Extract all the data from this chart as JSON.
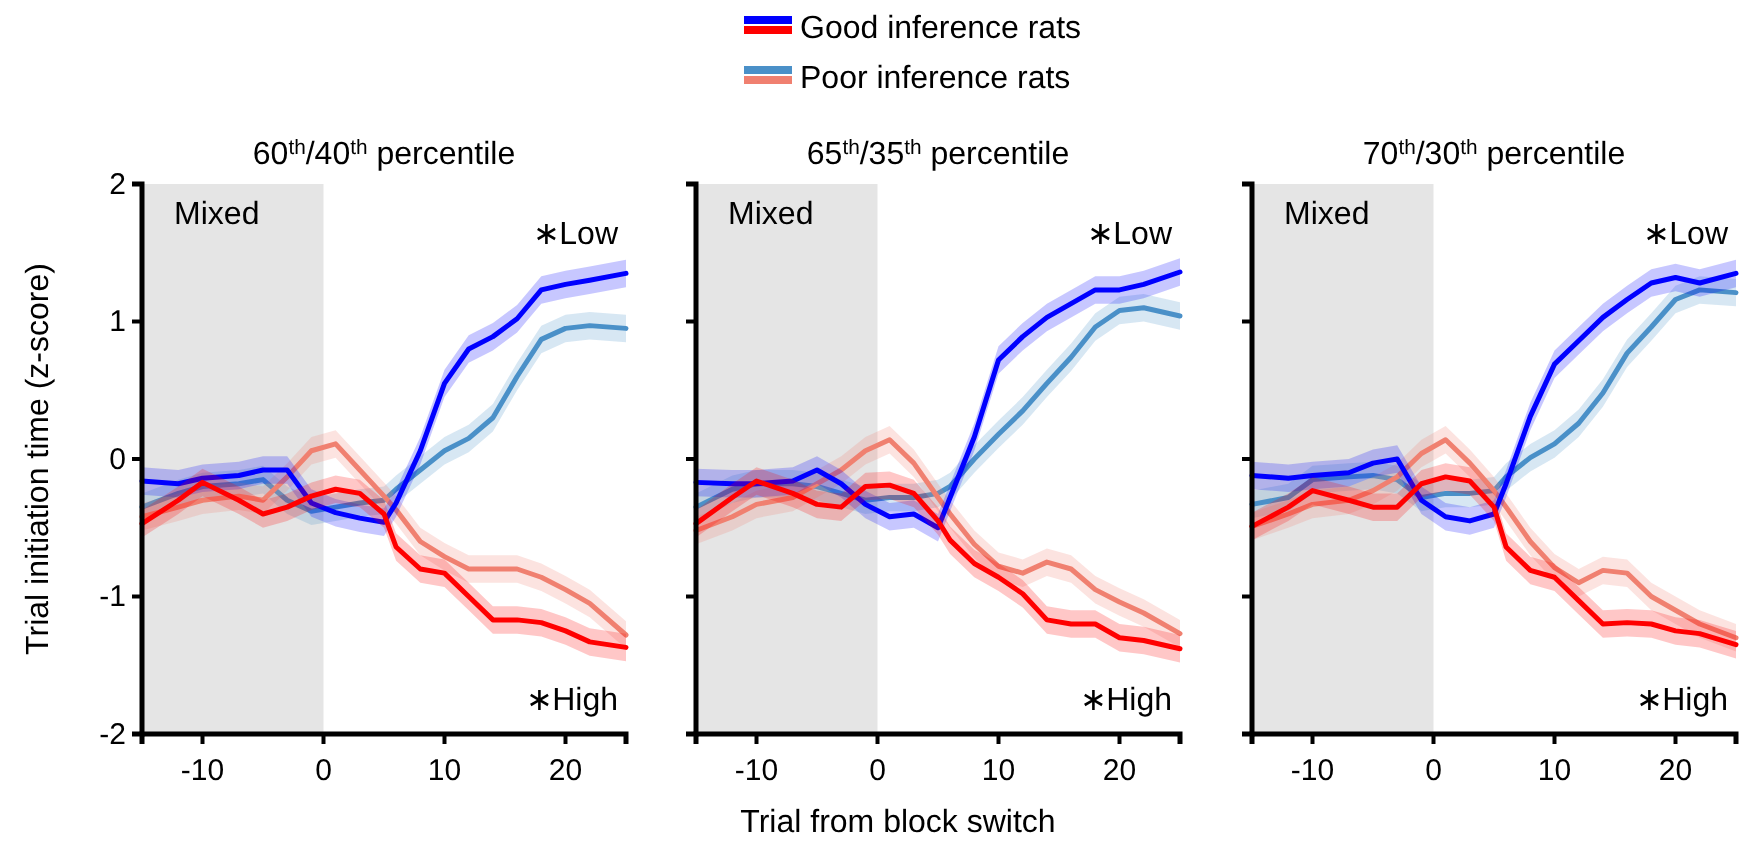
{
  "chart_data": [
    {
      "type": "line",
      "title": "60$^{th}$/40$^{th}$ percentile",
      "ylabel": "Trial initiation time (z-score)",
      "x": [
        -15,
        -12,
        -10,
        -7,
        -5,
        -3,
        -1,
        1,
        3,
        5,
        6,
        8,
        10,
        12,
        14,
        16,
        18,
        20,
        22,
        25
      ],
      "xlim": [
        -15,
        25
      ],
      "xticks": [
        -10,
        0,
        10,
        20
      ],
      "ylim": [
        -2,
        2
      ],
      "yticks": [
        -2,
        -1,
        0,
        1,
        2
      ],
      "bands": [
        {
          "axis": "x",
          "from": -15,
          "to": 0,
          "label": "Mixed",
          "color": "#e5e5e5"
        }
      ],
      "annotations": [
        "∗Low",
        "∗High"
      ],
      "series": [
        {
          "color": "#4a90c8",
          "values": [
            -0.35,
            -0.25,
            -0.2,
            -0.18,
            -0.15,
            -0.3,
            -0.38,
            -0.35,
            -0.32,
            -0.3,
            -0.22,
            -0.08,
            0.06,
            0.15,
            0.3,
            0.6,
            0.87,
            0.95,
            0.97,
            0.95
          ],
          "lower": [
            -0.45,
            -0.35,
            -0.3,
            -0.28,
            -0.25,
            -0.4,
            -0.48,
            -0.45,
            -0.42,
            -0.4,
            -0.32,
            -0.18,
            -0.04,
            0.05,
            0.2,
            0.5,
            0.77,
            0.85,
            0.87,
            0.85
          ],
          "upper": [
            -0.25,
            -0.15,
            -0.1,
            -0.08,
            -0.05,
            -0.2,
            -0.28,
            -0.25,
            -0.22,
            -0.2,
            -0.12,
            0.02,
            0.16,
            0.25,
            0.4,
            0.7,
            0.97,
            1.05,
            1.07,
            1.05
          ]
        },
        {
          "color": "#f08070",
          "values": [
            -0.42,
            -0.35,
            -0.3,
            -0.27,
            -0.3,
            -0.13,
            0.06,
            0.11,
            -0.08,
            -0.27,
            -0.37,
            -0.6,
            -0.71,
            -0.8,
            -0.8,
            -0.8,
            -0.86,
            -0.95,
            -1.05,
            -1.28
          ],
          "lower": [
            -0.52,
            -0.45,
            -0.4,
            -0.37,
            -0.4,
            -0.23,
            -0.04,
            0.01,
            -0.18,
            -0.37,
            -0.47,
            -0.7,
            -0.81,
            -0.9,
            -0.9,
            -0.9,
            -0.96,
            -1.05,
            -1.15,
            -1.38
          ],
          "upper": [
            -0.32,
            -0.25,
            -0.2,
            -0.17,
            -0.2,
            -0.03,
            0.16,
            0.21,
            0.02,
            -0.17,
            -0.27,
            -0.5,
            -0.61,
            -0.7,
            -0.7,
            -0.7,
            -0.76,
            -0.85,
            -0.95,
            -1.18
          ]
        },
        {
          "color": "#0000ff",
          "values": [
            -0.16,
            -0.18,
            -0.14,
            -0.12,
            -0.08,
            -0.08,
            -0.32,
            -0.39,
            -0.43,
            -0.46,
            -0.32,
            0.06,
            0.55,
            0.8,
            0.89,
            1.02,
            1.23,
            1.27,
            1.3,
            1.35
          ],
          "lower": [
            -0.26,
            -0.28,
            -0.24,
            -0.22,
            -0.18,
            -0.18,
            -0.42,
            -0.49,
            -0.53,
            -0.56,
            -0.42,
            -0.04,
            0.45,
            0.7,
            0.79,
            0.92,
            1.13,
            1.17,
            1.2,
            1.25
          ],
          "upper": [
            -0.06,
            -0.08,
            -0.04,
            -0.02,
            0.02,
            0.02,
            -0.22,
            -0.29,
            -0.33,
            -0.36,
            -0.22,
            0.16,
            0.65,
            0.9,
            0.99,
            1.12,
            1.33,
            1.37,
            1.4,
            1.45
          ]
        },
        {
          "color": "#ff0000",
          "values": [
            -0.47,
            -0.3,
            -0.17,
            -0.3,
            -0.4,
            -0.35,
            -0.27,
            -0.22,
            -0.25,
            -0.4,
            -0.64,
            -0.8,
            -0.83,
            -1.0,
            -1.17,
            -1.17,
            -1.19,
            -1.25,
            -1.33,
            -1.37
          ],
          "lower": [
            -0.57,
            -0.4,
            -0.27,
            -0.4,
            -0.5,
            -0.45,
            -0.37,
            -0.32,
            -0.35,
            -0.5,
            -0.74,
            -0.9,
            -0.93,
            -1.1,
            -1.27,
            -1.27,
            -1.29,
            -1.35,
            -1.43,
            -1.47
          ],
          "upper": [
            -0.37,
            -0.2,
            -0.07,
            -0.2,
            -0.3,
            -0.25,
            -0.17,
            -0.12,
            -0.15,
            -0.3,
            -0.54,
            -0.7,
            -0.73,
            -0.9,
            -1.07,
            -1.07,
            -1.09,
            -1.15,
            -1.23,
            -1.27
          ]
        }
      ]
    },
    {
      "type": "line",
      "title": "65$^{th}$/35$^{th}$ percentile",
      "xlabel": "Trial from block switch",
      "legend": "top",
      "tick_labels": "x",
      "x": [
        -15,
        -12,
        -10,
        -7,
        -5,
        -3,
        -1,
        1,
        3,
        5,
        6,
        8,
        10,
        12,
        14,
        16,
        18,
        20,
        22,
        25
      ],
      "xlim": [
        -15,
        25
      ],
      "xticks": [
        -10,
        0,
        10,
        20
      ],
      "ylim": [
        -2,
        2
      ],
      "yticks": [
        -2,
        -1,
        0,
        1,
        2
      ],
      "bands": [
        {
          "axis": "x",
          "from": -15,
          "to": 0,
          "label": "Mixed",
          "color": "#e5e5e5"
        }
      ],
      "annotations": [
        "∗Low",
        "∗High"
      ],
      "series": [
        {
          "name": "Poor inference rats",
          "color": "#4a90c8",
          "values": [
            -0.35,
            -0.22,
            -0.18,
            -0.18,
            -0.2,
            -0.25,
            -0.3,
            -0.28,
            -0.28,
            -0.25,
            -0.2,
            0.0,
            0.18,
            0.35,
            0.55,
            0.74,
            0.96,
            1.08,
            1.1,
            1.04
          ],
          "lower": [
            -0.45,
            -0.32,
            -0.28,
            -0.28,
            -0.3,
            -0.35,
            -0.4,
            -0.38,
            -0.38,
            -0.35,
            -0.3,
            -0.1,
            0.08,
            0.25,
            0.45,
            0.64,
            0.86,
            0.98,
            1.0,
            0.94
          ],
          "upper": [
            -0.25,
            -0.12,
            -0.08,
            -0.08,
            -0.1,
            -0.15,
            -0.2,
            -0.18,
            -0.18,
            -0.15,
            -0.1,
            0.1,
            0.28,
            0.45,
            0.65,
            0.84,
            1.06,
            1.18,
            1.2,
            1.14
          ]
        },
        {
          "color": "#f08070",
          "values": [
            -0.52,
            -0.42,
            -0.33,
            -0.28,
            -0.18,
            -0.08,
            0.06,
            0.14,
            -0.03,
            -0.28,
            -0.4,
            -0.62,
            -0.78,
            -0.83,
            -0.75,
            -0.8,
            -0.95,
            -1.04,
            -1.12,
            -1.27
          ],
          "lower": [
            -0.62,
            -0.52,
            -0.43,
            -0.38,
            -0.28,
            -0.18,
            -0.04,
            0.04,
            -0.13,
            -0.38,
            -0.5,
            -0.72,
            -0.88,
            -0.93,
            -0.85,
            -0.9,
            -1.05,
            -1.14,
            -1.22,
            -1.37
          ],
          "upper": [
            -0.42,
            -0.32,
            -0.23,
            -0.18,
            -0.08,
            0.02,
            0.16,
            0.24,
            0.07,
            -0.18,
            -0.3,
            -0.52,
            -0.68,
            -0.73,
            -0.65,
            -0.7,
            -0.85,
            -0.94,
            -1.02,
            -1.17
          ]
        },
        {
          "name": "Good inference rats",
          "color": "#0000ff",
          "values": [
            -0.17,
            -0.18,
            -0.18,
            -0.16,
            -0.08,
            -0.18,
            -0.33,
            -0.42,
            -0.4,
            -0.5,
            -0.28,
            0.16,
            0.72,
            0.89,
            1.03,
            1.13,
            1.23,
            1.23,
            1.27,
            1.36
          ],
          "lower": [
            -0.27,
            -0.28,
            -0.28,
            -0.26,
            -0.18,
            -0.28,
            -0.43,
            -0.52,
            -0.5,
            -0.6,
            -0.38,
            0.06,
            0.62,
            0.79,
            0.93,
            1.03,
            1.13,
            1.13,
            1.17,
            1.26
          ],
          "upper": [
            -0.07,
            -0.08,
            -0.08,
            -0.06,
            0.02,
            -0.08,
            -0.23,
            -0.32,
            -0.3,
            -0.4,
            -0.18,
            0.26,
            0.82,
            0.99,
            1.13,
            1.23,
            1.33,
            1.33,
            1.37,
            1.46
          ]
        },
        {
          "color": "#ff0000",
          "values": [
            -0.47,
            -0.28,
            -0.16,
            -0.25,
            -0.33,
            -0.35,
            -0.2,
            -0.19,
            -0.25,
            -0.45,
            -0.59,
            -0.76,
            -0.86,
            -0.98,
            -1.17,
            -1.2,
            -1.2,
            -1.3,
            -1.32,
            -1.38
          ],
          "lower": [
            -0.57,
            -0.38,
            -0.26,
            -0.35,
            -0.43,
            -0.45,
            -0.3,
            -0.29,
            -0.35,
            -0.55,
            -0.69,
            -0.86,
            -0.96,
            -1.08,
            -1.27,
            -1.3,
            -1.3,
            -1.4,
            -1.42,
            -1.48
          ],
          "upper": [
            -0.37,
            -0.18,
            -0.06,
            -0.15,
            -0.23,
            -0.25,
            -0.1,
            -0.09,
            -0.15,
            -0.35,
            -0.49,
            -0.66,
            -0.76,
            -0.88,
            -1.07,
            -1.1,
            -1.1,
            -1.2,
            -1.22,
            -1.28
          ]
        }
      ]
    },
    {
      "type": "line",
      "title": "70$^{th}$/30$^{th}$ percentile",
      "tick_labels": "x",
      "x": [
        -15,
        -12,
        -10,
        -7,
        -5,
        -3,
        -1,
        1,
        3,
        5,
        6,
        8,
        10,
        12,
        14,
        16,
        18,
        20,
        22,
        25
      ],
      "xlim": [
        -15,
        25
      ],
      "xticks": [
        -10,
        0,
        10,
        20
      ],
      "ylim": [
        -2,
        2
      ],
      "yticks": [
        -2,
        -1,
        0,
        1,
        2
      ],
      "bands": [
        {
          "axis": "x",
          "from": -15,
          "to": 0,
          "label": "Mixed",
          "color": "#e5e5e5"
        }
      ],
      "annotations": [
        "∗Low",
        "∗High"
      ],
      "series": [
        {
          "color": "#4a90c8",
          "values": [
            -0.33,
            -0.28,
            -0.15,
            -0.13,
            -0.12,
            -0.15,
            -0.28,
            -0.25,
            -0.25,
            -0.23,
            -0.13,
            0.01,
            0.11,
            0.26,
            0.48,
            0.77,
            0.96,
            1.16,
            1.23,
            1.21
          ],
          "lower": [
            -0.43,
            -0.38,
            -0.25,
            -0.23,
            -0.22,
            -0.25,
            -0.38,
            -0.35,
            -0.35,
            -0.33,
            -0.23,
            -0.09,
            0.01,
            0.16,
            0.38,
            0.67,
            0.86,
            1.06,
            1.13,
            1.11
          ],
          "upper": [
            -0.23,
            -0.18,
            -0.05,
            -0.03,
            -0.02,
            -0.05,
            -0.18,
            -0.15,
            -0.15,
            -0.13,
            -0.03,
            0.11,
            0.21,
            0.36,
            0.58,
            0.87,
            1.06,
            1.26,
            1.33,
            1.31
          ]
        },
        {
          "color": "#f08070",
          "values": [
            -0.49,
            -0.4,
            -0.33,
            -0.3,
            -0.23,
            -0.13,
            0.04,
            0.14,
            -0.03,
            -0.23,
            -0.35,
            -0.6,
            -0.79,
            -0.9,
            -0.81,
            -0.83,
            -1.0,
            -1.1,
            -1.2,
            -1.3
          ],
          "lower": [
            -0.59,
            -0.5,
            -0.43,
            -0.4,
            -0.33,
            -0.23,
            -0.06,
            0.04,
            -0.13,
            -0.33,
            -0.45,
            -0.7,
            -0.89,
            -1.0,
            -0.91,
            -0.93,
            -1.1,
            -1.2,
            -1.3,
            -1.4
          ],
          "upper": [
            -0.39,
            -0.3,
            -0.23,
            -0.2,
            -0.13,
            -0.03,
            0.14,
            0.24,
            0.07,
            -0.13,
            -0.25,
            -0.5,
            -0.69,
            -0.8,
            -0.71,
            -0.73,
            -0.9,
            -1.0,
            -1.1,
            -1.2
          ]
        },
        {
          "color": "#0000ff",
          "values": [
            -0.12,
            -0.14,
            -0.12,
            -0.1,
            -0.03,
            0.0,
            -0.3,
            -0.42,
            -0.45,
            -0.4,
            -0.18,
            0.31,
            0.69,
            0.86,
            1.03,
            1.16,
            1.28,
            1.32,
            1.28,
            1.35
          ],
          "lower": [
            -0.22,
            -0.24,
            -0.22,
            -0.2,
            -0.13,
            -0.1,
            -0.4,
            -0.52,
            -0.55,
            -0.5,
            -0.28,
            0.21,
            0.59,
            0.76,
            0.93,
            1.06,
            1.18,
            1.22,
            1.18,
            1.25
          ],
          "upper": [
            -0.02,
            -0.04,
            -0.02,
            0.0,
            0.07,
            0.1,
            -0.2,
            -0.32,
            -0.35,
            -0.3,
            -0.08,
            0.41,
            0.79,
            0.96,
            1.13,
            1.26,
            1.38,
            1.42,
            1.38,
            1.45
          ]
        },
        {
          "color": "#ff0000",
          "values": [
            -0.49,
            -0.35,
            -0.23,
            -0.3,
            -0.35,
            -0.35,
            -0.18,
            -0.13,
            -0.16,
            -0.35,
            -0.64,
            -0.81,
            -0.86,
            -1.03,
            -1.2,
            -1.19,
            -1.2,
            -1.25,
            -1.27,
            -1.35
          ],
          "lower": [
            -0.59,
            -0.45,
            -0.33,
            -0.4,
            -0.45,
            -0.45,
            -0.28,
            -0.23,
            -0.26,
            -0.45,
            -0.74,
            -0.91,
            -0.96,
            -1.13,
            -1.3,
            -1.29,
            -1.3,
            -1.35,
            -1.37,
            -1.45
          ],
          "upper": [
            -0.39,
            -0.25,
            -0.13,
            -0.2,
            -0.25,
            -0.25,
            -0.08,
            -0.03,
            -0.06,
            -0.25,
            -0.54,
            -0.71,
            -0.76,
            -0.93,
            -1.1,
            -1.09,
            -1.1,
            -1.15,
            -1.17,
            -1.25
          ]
        }
      ]
    }
  ]
}
